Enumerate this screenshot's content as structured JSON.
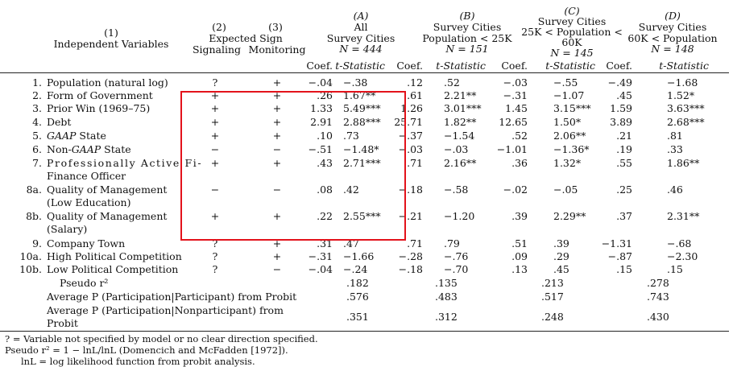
{
  "headers": {
    "col1": [
      "(1)",
      "Independent Variables"
    ],
    "col23_top": [
      "(2)",
      "(3)"
    ],
    "col23_mid": "Expected Sign",
    "col23_bottom": [
      "Signaling",
      "Monitoring"
    ],
    "groupA": [
      "(A)",
      "All",
      "Survey Cities",
      "N = 444"
    ],
    "groupB": [
      "(B)",
      "Survey Cities",
      "Population < 25K",
      "N = 151"
    ],
    "groupC": [
      "(C)",
      "Survey Cities",
      "25K < Population <",
      "60K",
      "N = 145"
    ],
    "groupD": [
      "(D)",
      "Survey Cities",
      "60K < Population",
      "N = 148"
    ],
    "coef": "Coef.",
    "tstat": "t-Statistic"
  },
  "rows": [
    {
      "num": "1.",
      "label": [
        "Population (natural log)"
      ],
      "sig": "?",
      "mon": "+",
      "vals": [
        "−.04",
        "−.38",
        ".12",
        ".52",
        "−.03",
        "−.55",
        "−.49",
        "−1.68"
      ]
    },
    {
      "num": "2.",
      "label": [
        "Form of Government"
      ],
      "sig": "+",
      "mon": "+",
      "vals": [
        ".26",
        "1.67**",
        ".61",
        "2.21**",
        "−.31",
        "−1.07",
        ".45",
        "1.52*"
      ]
    },
    {
      "num": "3.",
      "label": [
        "Prior Win (1969–75)"
      ],
      "sig": "+",
      "mon": "+",
      "vals": [
        "1.33",
        "5.49***",
        "1.26",
        "3.01***",
        "1.45",
        "3.15***",
        "1.59",
        "3.63***"
      ]
    },
    {
      "num": "4.",
      "label": [
        "Debt"
      ],
      "sig": "+",
      "mon": "+",
      "vals": [
        "2.91",
        "2.88***",
        "25.71",
        "1.82**",
        "12.65",
        "1.50*",
        "3.89",
        "2.68***"
      ]
    },
    {
      "num": "5.",
      "label": [
        "GAAP State"
      ],
      "sig": "+",
      "mon": "+",
      "vals": [
        ".10",
        ".73",
        "−.37",
        "−1.54",
        ".52",
        "2.06**",
        ".21",
        ".81"
      ]
    },
    {
      "num": "6.",
      "label": [
        "Non-GAAP State"
      ],
      "sig": "−",
      "mon": "−",
      "vals": [
        "−.51",
        "−1.48*",
        "−.03",
        "−.03",
        "−1.01",
        "−1.36*",
        ".19",
        ".33"
      ]
    },
    {
      "num": "7.",
      "label": [
        "Professionally Active Fi-",
        "Finance Officer"
      ],
      "sig": "+",
      "mon": "+",
      "vals": [
        ".43",
        "2.71***",
        ".71",
        "2.16**",
        ".36",
        "1.32*",
        ".55",
        "1.86**"
      ]
    },
    {
      "num": "8a.",
      "label": [
        "Quality of Management",
        "(Low Education)"
      ],
      "sig": "−",
      "mon": "−",
      "vals": [
        ".08",
        ".42",
        "−.18",
        "−.58",
        "−.02",
        "−.05",
        ".25",
        ".46"
      ]
    },
    {
      "num": "8b.",
      "label": [
        "Quality of Management",
        "(Salary)"
      ],
      "sig": "+",
      "mon": "+",
      "vals": [
        ".22",
        "2.55***",
        "−.21",
        "−1.20",
        ".39",
        "2.29**",
        ".37",
        "2.31**"
      ]
    },
    {
      "num": "9.",
      "label": [
        "Company Town"
      ],
      "sig": "?",
      "mon": "+",
      "vals": [
        ".31",
        ".47",
        ".71",
        ".79",
        ".51",
        ".39",
        "−1.31",
        "−.68"
      ]
    },
    {
      "num": "10a.",
      "label": [
        "High Political Competition"
      ],
      "sig": "?",
      "mon": "+",
      "vals": [
        "−.31",
        "−1.66",
        "−.28",
        "−.76",
        ".09",
        ".29",
        "−.87",
        "−2.30"
      ]
    },
    {
      "num": "10b.",
      "label": [
        "Low Political Competition"
      ],
      "sig": "?",
      "mon": "−",
      "vals": [
        "−.04",
        "−.24",
        "−.18",
        "−.70",
        ".13",
        ".45",
        ".15",
        ".15"
      ]
    }
  ],
  "summary": [
    {
      "label": [
        "Pseudo r²"
      ],
      "vals": [
        ".182",
        ".135",
        ".213",
        ".278"
      ]
    },
    {
      "label": [
        "Average P (Participation|Participant) from Probit"
      ],
      "vals": [
        ".576",
        ".483",
        ".517",
        ".743"
      ]
    },
    {
      "label": [
        "Average P (Participation|Nonparticipant) from",
        "Probit"
      ],
      "vals": [
        ".351",
        ".312",
        ".248",
        ".430"
      ]
    }
  ],
  "notes": [
    "? = Variable not specified by model or no clear direction specified.",
    "Pseudo r² = 1 − lnL/lnL (Domencich and McFadden [1972]).",
    "lnL = log likelihood function from probit analysis."
  ],
  "highlight_color": "#e3131b"
}
